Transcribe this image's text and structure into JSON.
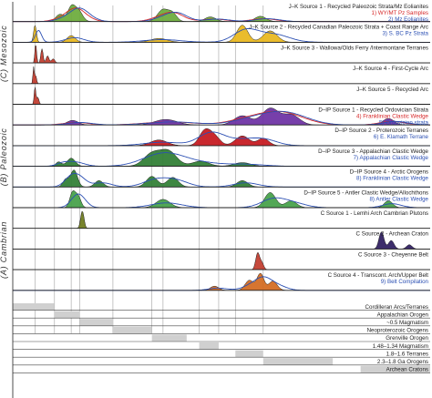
{
  "chart_data": {
    "type": "area",
    "title": "",
    "x_axis": {
      "label": "",
      "tick_labels": [],
      "range_ma": [
        0,
        3000
      ]
    },
    "groups": [
      {
        "label": "(C) Mesozoic",
        "panel_start": 0,
        "panel_end": 4
      },
      {
        "label": "(B) Paleozoic",
        "panel_start": 5,
        "panel_end": 9
      },
      {
        "label": "(A) Cambrian",
        "panel_start": 10,
        "panel_end": 13
      }
    ],
    "panels": [
      {
        "title": "J–K Source 1 - Recycled Paleozoic Strata/Mz Eolianites",
        "overlay_labels": [
          {
            "text": "1) WY/MT Pz Samples",
            "color": "#d62728"
          },
          {
            "text": "2) Mz Eolianites",
            "color": "#2b4fb3"
          }
        ],
        "fill": "#6aaa3a",
        "peaks_ma": [
          [
            340,
            0.55,
            30
          ],
          [
            420,
            1.0,
            25
          ],
          [
            470,
            0.85,
            30
          ],
          [
            1080,
            0.9,
            40
          ],
          [
            1150,
            0.55,
            30
          ],
          [
            1420,
            0.35,
            40
          ],
          [
            1780,
            0.4,
            40
          ]
        ]
      },
      {
        "title": "J–K Source 2 - Recycled Canadian Paleozoic Strata + Coast Range Arc",
        "overlay_labels": [
          {
            "text": "3) S. BC Pz Strata",
            "color": "#2b4fb3"
          }
        ],
        "fill": "#e8b61a",
        "peaks_ma": [
          [
            160,
            0.9,
            10
          ],
          [
            420,
            0.35,
            30
          ],
          [
            1050,
            0.2,
            60
          ],
          [
            1650,
            0.9,
            40
          ],
          [
            1850,
            0.6,
            50
          ]
        ]
      },
      {
        "title": "J–K Source 3 - Wallowa/Olds Ferry /Intermontane Terranes",
        "overlay_labels": [],
        "fill": "#c0392b",
        "peaks_ma": [
          [
            165,
            0.95,
            6
          ],
          [
            210,
            0.7,
            8
          ],
          [
            250,
            0.35,
            10
          ],
          [
            290,
            0.2,
            12
          ]
        ]
      },
      {
        "title": "J–K Source 4 - First-Cycle Arc",
        "overlay_labels": [],
        "fill": "#c0392b",
        "peaks_ma": [
          [
            150,
            1.0,
            5
          ],
          [
            165,
            0.5,
            6
          ]
        ]
      },
      {
        "title": "J–K Source 5 - Recycled Arc",
        "overlay_labels": [],
        "fill": "#c0392b",
        "peaks_ma": [
          [
            160,
            1.0,
            6
          ],
          [
            180,
            0.4,
            8
          ]
        ]
      },
      {
        "title": "D–IP Source 1 - Recycled Ordovician Strata",
        "overlay_labels": [
          {
            "text": "4) Franklinian Clastic Wedge",
            "color": "#d62728"
          },
          {
            "text": "5) Ordovician strata",
            "color": "#2b4fb3"
          }
        ],
        "fill": "#6b2fa3",
        "peaks_ma": [
          [
            430,
            0.25,
            40
          ],
          [
            1100,
            0.3,
            80
          ],
          [
            1650,
            0.5,
            60
          ],
          [
            1850,
            0.9,
            60
          ],
          [
            2000,
            0.55,
            60
          ],
          [
            2700,
            0.35,
            40
          ]
        ]
      },
      {
        "title": "D–IP Source 2 - Proterozoic Terranes",
        "overlay_labels": [
          {
            "text": "6) E. Klamath Terrane",
            "color": "#2b4fb3"
          }
        ],
        "fill": "#c4161c",
        "peaks_ma": [
          [
            1050,
            0.35,
            60
          ],
          [
            1380,
            0.9,
            40
          ],
          [
            1450,
            0.55,
            40
          ],
          [
            1650,
            0.6,
            50
          ],
          [
            1800,
            0.45,
            40
          ]
        ]
      },
      {
        "title": "D–IP Source 3 - Appalachian Clastic Wedge",
        "overlay_labels": [
          {
            "text": "7) Appalachian Clastic Wedge",
            "color": "#2b4fb3"
          }
        ],
        "fill": "#2e7d32",
        "peaks_ma": [
          [
            330,
            0.3,
            20
          ],
          [
            420,
            0.55,
            30
          ],
          [
            1000,
            0.85,
            60
          ],
          [
            1120,
            1.0,
            60
          ],
          [
            1350,
            0.35,
            60
          ],
          [
            1650,
            0.25,
            60
          ]
        ]
      },
      {
        "title": "D–IP Source 4 - Arctic Orogens",
        "overlay_labels": [
          {
            "text": "8) Franklinian Clastic Wedge",
            "color": "#2b4fb3"
          }
        ],
        "fill": "#2e7d32",
        "peaks_ma": [
          [
            380,
            0.35,
            20
          ],
          [
            440,
            0.8,
            25
          ],
          [
            620,
            0.3,
            30
          ],
          [
            1000,
            0.5,
            40
          ],
          [
            1150,
            0.45,
            40
          ],
          [
            1650,
            0.3,
            40
          ]
        ]
      },
      {
        "title": "D–IP Source 5 - Antler Clastic Wedge/Allochthons",
        "overlay_labels": [
          {
            "text": "8) Antler Clastic Wedge",
            "color": "#2b4fb3"
          }
        ],
        "fill": "#43a047",
        "peaks_ma": [
          [
            430,
            0.55,
            20
          ],
          [
            470,
            0.4,
            20
          ],
          [
            1080,
            0.3,
            50
          ],
          [
            1850,
            0.55,
            40
          ],
          [
            2000,
            0.25,
            40
          ],
          [
            2700,
            0.25,
            30
          ]
        ]
      },
      {
        "title": "C Source 1 - Lemhi Arch Cambrian Plutons",
        "overlay_labels": [],
        "fill": "#6d7a1a",
        "peaks_ma": [
          [
            500,
            1.0,
            12
          ]
        ]
      },
      {
        "title": "C Source 2 - Archean Craton",
        "overlay_labels": [],
        "fill": "#2d1b5e",
        "peaks_ma": [
          [
            2650,
            1.0,
            18
          ],
          [
            2720,
            0.5,
            20
          ],
          [
            2850,
            0.25,
            20
          ]
        ]
      },
      {
        "title": "C Source 3 - Cheyenne Belt",
        "overlay_labels": [],
        "fill": "#c0392b",
        "peaks_ma": [
          [
            1760,
            1.0,
            14
          ],
          [
            1790,
            0.4,
            14
          ]
        ]
      },
      {
        "title": "C Source 4 - Transcont. Arch/Upper Belt",
        "overlay_labels": [
          {
            "text": "9) Belt Compilation",
            "color": "#2b4fb3"
          }
        ],
        "fill": "#d2691e",
        "peaks_ma": [
          [
            1450,
            0.25,
            30
          ],
          [
            1700,
            0.6,
            30
          ],
          [
            1780,
            1.0,
            25
          ],
          [
            1870,
            0.55,
            30
          ]
        ]
      }
    ],
    "events": [
      {
        "label": "Cordilleran Arcs/Terranes",
        "range_ma": [
          0,
          300
        ]
      },
      {
        "label": "Appalachian Orogen",
        "range_ma": [
          300,
          480
        ]
      },
      {
        "label": "~0.5 Magmatism",
        "range_ma": [
          480,
          720
        ]
      },
      {
        "label": "Neoproterozoic Orogens",
        "range_ma": [
          720,
          1000
        ]
      },
      {
        "label": "Grenville Orogen",
        "range_ma": [
          1000,
          1250
        ]
      },
      {
        "label": "1.48–1.34 Magmatism",
        "range_ma": [
          1340,
          1480
        ]
      },
      {
        "label": "1.8–1.6 Terranes",
        "range_ma": [
          1600,
          1800
        ]
      },
      {
        "label": "2.3–1.8 Ga Orogens",
        "range_ma": [
          1800,
          2300
        ]
      },
      {
        "label": "Archean Cratons",
        "range_ma": [
          2500,
          3000
        ]
      }
    ],
    "guide_lines_ma": [
      160,
      300,
      420,
      480,
      720,
      1000,
      1080,
      1340,
      1480,
      1600,
      1800
    ]
  }
}
